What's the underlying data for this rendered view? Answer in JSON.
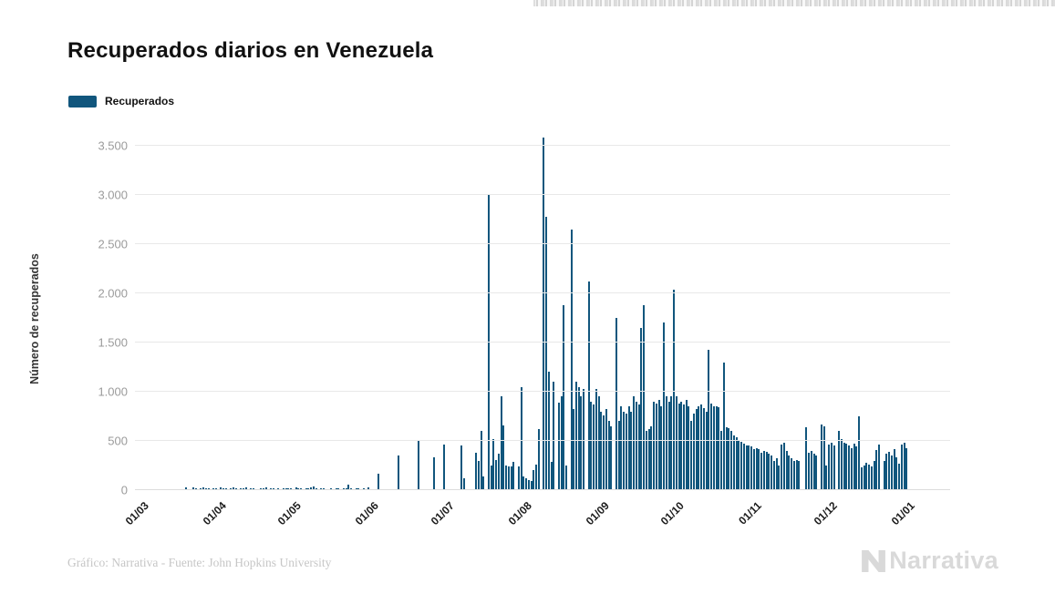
{
  "header": {
    "title": "Recuperados diarios en Venezuela"
  },
  "legend": {
    "label": "Recuperados",
    "swatch_color": "#11567D"
  },
  "footer": {
    "attribution": "Gráfico: Narrativa - Fuente: John Hopkins University",
    "logo_text": "Narrativa"
  },
  "chart_data": {
    "type": "bar",
    "title": "Recuperados diarios en Venezuela",
    "xlabel": "",
    "ylabel": "Número de recuperados",
    "ylim": [
      0,
      3500
    ],
    "grid": true,
    "legend_position": "top-left",
    "bar_color": "#11567D",
    "yticks": [
      0,
      500,
      1000,
      1500,
      2000,
      2500,
      3000,
      3500
    ],
    "ytick_labels": [
      "0",
      "500",
      "1.000",
      "1.500",
      "2.000",
      "2.500",
      "3.000",
      "3.500"
    ],
    "xtick_labels": [
      "01/03",
      "01/04",
      "01/05",
      "01/06",
      "01/07",
      "01/08",
      "01/09",
      "01/10",
      "01/11",
      "01/12",
      "01/01"
    ],
    "xtick_day_index": [
      0,
      31,
      61,
      92,
      122,
      153,
      184,
      214,
      245,
      275,
      306
    ],
    "series": [
      {
        "name": "Recuperados",
        "start_date": "01/03/2020",
        "end_date": "03/01/2021",
        "values": [
          0,
          0,
          0,
          0,
          0,
          0,
          0,
          0,
          0,
          0,
          0,
          0,
          0,
          0,
          0,
          0,
          0,
          0,
          0,
          0,
          25,
          10,
          0,
          30,
          15,
          0,
          20,
          25,
          15,
          20,
          10,
          15,
          20,
          10,
          25,
          20,
          15,
          0,
          20,
          25,
          15,
          10,
          20,
          15,
          25,
          10,
          15,
          20,
          10,
          0,
          15,
          20,
          25,
          10,
          15,
          20,
          10,
          15,
          10,
          20,
          15,
          20,
          15,
          10,
          25,
          15,
          20,
          10,
          15,
          20,
          25,
          35,
          15,
          10,
          20,
          15,
          10,
          0,
          15,
          10,
          20,
          15,
          10,
          15,
          20,
          60,
          15,
          10,
          20,
          15,
          10,
          15,
          0,
          30,
          0,
          0,
          0,
          165,
          0,
          0,
          0,
          0,
          0,
          0,
          0,
          350,
          0,
          0,
          0,
          0,
          0,
          0,
          0,
          500,
          0,
          0,
          0,
          0,
          0,
          330,
          0,
          0,
          0,
          460,
          0,
          0,
          0,
          0,
          0,
          0,
          455,
          120,
          0,
          0,
          0,
          0,
          380,
          300,
          600,
          135,
          0,
          3010,
          250,
          520,
          310,
          370,
          950,
          660,
          250,
          240,
          240,
          290,
          0,
          240,
          1050,
          135,
          120,
          100,
          95,
          200,
          260,
          620,
          0,
          3580,
          2780,
          1200,
          290,
          1100,
          0,
          890,
          950,
          1880,
          250,
          0,
          2650,
          820,
          1100,
          1050,
          950,
          1030,
          0,
          2120,
          900,
          870,
          1030,
          950,
          800,
          760,
          820,
          700,
          650,
          0,
          1750,
          700,
          850,
          800,
          780,
          850,
          800,
          950,
          900,
          870,
          1650,
          1880,
          600,
          620,
          650,
          900,
          880,
          920,
          850,
          1700,
          950,
          900,
          950,
          2040,
          950,
          880,
          900,
          870,
          920,
          850,
          700,
          780,
          820,
          850,
          870,
          830,
          800,
          1430,
          880,
          850,
          850,
          840,
          600,
          1300,
          640,
          630,
          600,
          560,
          540,
          510,
          490,
          470,
          450,
          450,
          440,
          420,
          430,
          420,
          380,
          400,
          390,
          370,
          350,
          300,
          320,
          250,
          460,
          480,
          400,
          350,
          320,
          300,
          310,
          300,
          0,
          0,
          640,
          380,
          400,
          370,
          350,
          0,
          665,
          650,
          250,
          460,
          480,
          450,
          0,
          600,
          520,
          480,
          470,
          450,
          430,
          470,
          440,
          750,
          230,
          250,
          280,
          260,
          240,
          300,
          410,
          460,
          0,
          300,
          370,
          390,
          350,
          420,
          330,
          270,
          460,
          480,
          430
        ]
      }
    ]
  }
}
